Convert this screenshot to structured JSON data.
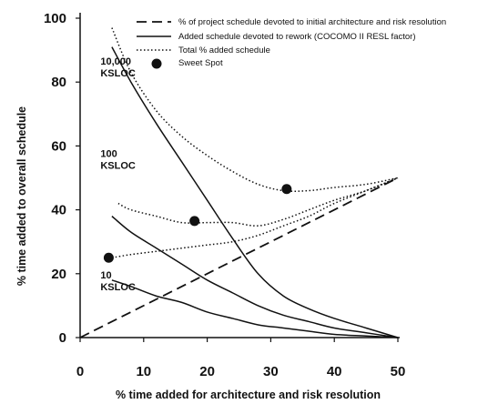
{
  "chart_data": {
    "type": "line",
    "xlabel": "% time added for architecture and risk resolution",
    "ylabel": "% time added to overall schedule",
    "xlim": [
      0,
      50
    ],
    "ylim": [
      0,
      100
    ],
    "x_ticks": [
      "0",
      "10",
      "20",
      "30",
      "40",
      "50"
    ],
    "y_ticks": [
      "0",
      "20",
      "40",
      "60",
      "80",
      "100"
    ],
    "grid": false,
    "legend": {
      "placement": "top-right",
      "entries": [
        {
          "label": "% of project schedule devoted to initial architecture and risk resolution",
          "style": "dashed"
        },
        {
          "label": "Added schedule devoted to rework (COCOMO II RESL factor)",
          "style": "solid"
        },
        {
          "label": "Total % added schedule",
          "style": "dotted"
        },
        {
          "label": "Sweet Spot",
          "style": "marker"
        }
      ]
    },
    "annotations": [
      {
        "lines": [
          "10,000",
          "KSLOC"
        ],
        "x": 3.2,
        "y": 85.5
      },
      {
        "lines": [
          "100",
          "KSLOC"
        ],
        "x": 3.2,
        "y": 56.5
      },
      {
        "lines": [
          "10",
          "KSLOC"
        ],
        "x": 3.2,
        "y": 18.5
      }
    ],
    "series": [
      {
        "style": "dashed",
        "x": [
          0,
          50
        ],
        "y": [
          0,
          50
        ]
      },
      {
        "style": "solid",
        "size": "10,000 KSLOC",
        "x": [
          5,
          8,
          12,
          16,
          20,
          24,
          28,
          32,
          36,
          40,
          45,
          50
        ],
        "y": [
          91,
          80,
          67,
          55,
          43,
          31,
          20,
          13,
          9,
          6,
          3,
          0
        ]
      },
      {
        "style": "solid",
        "size": "100 KSLOC",
        "x": [
          5,
          8,
          12,
          16,
          20,
          24,
          28,
          32,
          36,
          40,
          45,
          50
        ],
        "y": [
          38,
          33,
          28,
          23,
          18,
          14,
          10,
          7,
          5,
          3,
          1.5,
          0
        ]
      },
      {
        "style": "solid",
        "size": "10 KSLOC",
        "x": [
          5,
          8,
          12,
          16,
          20,
          24,
          28,
          32,
          36,
          40,
          45,
          50
        ],
        "y": [
          18,
          16,
          13,
          11,
          8,
          6,
          4,
          3,
          2,
          1,
          0.5,
          0
        ]
      },
      {
        "style": "dotted",
        "size": "10,000 KSLOC",
        "x": [
          5,
          8,
          12,
          16,
          20,
          24,
          28,
          32,
          36,
          40,
          45,
          50
        ],
        "y": [
          97,
          83,
          71,
          63,
          57,
          52,
          48,
          46,
          46,
          47,
          48,
          50
        ]
      },
      {
        "style": "dotted",
        "size": "100 KSLOC",
        "x": [
          6,
          8,
          12,
          16,
          20,
          24,
          28,
          32,
          36,
          40,
          45,
          50
        ],
        "y": [
          42,
          40,
          38,
          36,
          36,
          36,
          35,
          37,
          40,
          43,
          46,
          50
        ]
      },
      {
        "style": "dotted",
        "size": "10 KSLOC",
        "x": [
          5,
          8,
          12,
          16,
          20,
          24,
          28,
          32,
          36,
          40,
          45,
          50
        ],
        "y": [
          25,
          26,
          27,
          28,
          29,
          30,
          32,
          35,
          38,
          42,
          46,
          50
        ]
      }
    ],
    "sweet_spots": [
      {
        "x": 4.5,
        "y": 25
      },
      {
        "x": 18,
        "y": 36.5
      },
      {
        "x": 32.5,
        "y": 46.5
      }
    ]
  }
}
